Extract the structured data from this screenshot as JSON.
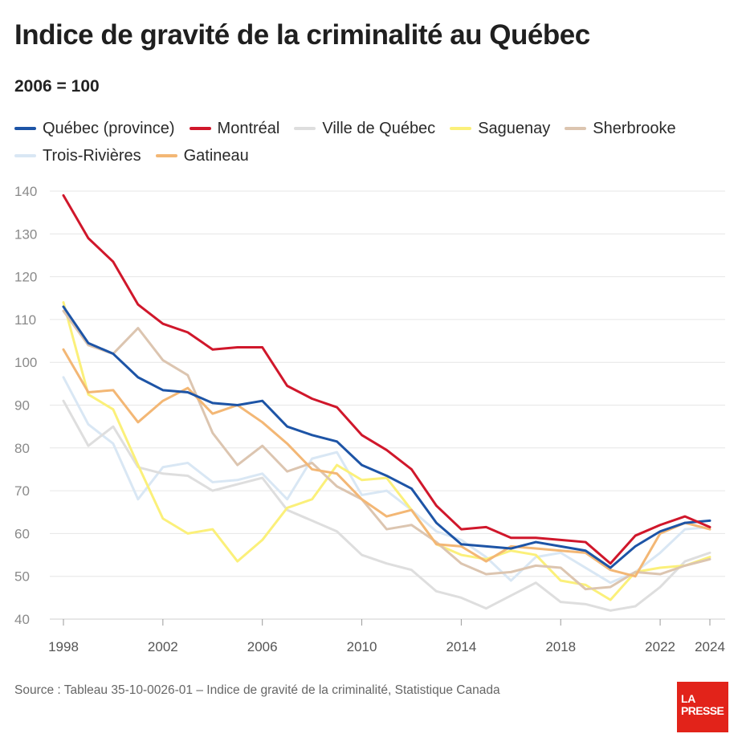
{
  "title": "Indice de gravité de la criminalité au Québec",
  "subtitle": "2006 = 100",
  "source": "Source : Tableau 35-10-0026-01 – Indice de gravité de la criminalité, Statistique Canada",
  "logo": {
    "line1": "LA",
    "line2": "PRESSE"
  },
  "chart_data": {
    "type": "line",
    "title": "Indice de gravité de la criminalité au Québec",
    "subtitle": "2006 = 100",
    "xlabel": "",
    "ylabel": "",
    "x": [
      1998,
      1999,
      2000,
      2001,
      2002,
      2003,
      2004,
      2005,
      2006,
      2007,
      2008,
      2009,
      2010,
      2011,
      2012,
      2013,
      2014,
      2015,
      2016,
      2017,
      2018,
      2019,
      2020,
      2021,
      2022,
      2023,
      2024
    ],
    "xticks": [
      1998,
      2002,
      2006,
      2010,
      2014,
      2018,
      2022,
      2024
    ],
    "yticks": [
      40,
      50,
      60,
      70,
      80,
      90,
      100,
      110,
      120,
      130,
      140
    ],
    "ylim": [
      40,
      140
    ],
    "xlim": [
      1998,
      2024
    ],
    "grid": true,
    "legend": "top",
    "series": [
      {
        "name": "Trois-Rivières",
        "color": "#d9e7f4",
        "values": [
          96.5,
          85.5,
          81,
          68,
          75.5,
          76.5,
          72,
          72.5,
          74,
          68,
          77.5,
          79,
          69,
          70,
          65.5,
          60.5,
          58.5,
          54.5,
          49,
          54.5,
          55.5,
          52,
          48.5,
          51,
          55.5,
          61,
          61.5
        ]
      },
      {
        "name": "Ville de Québec",
        "color": "#dedede",
        "values": [
          91,
          80.5,
          85,
          75.5,
          74,
          73.5,
          70,
          71.5,
          73,
          65.5,
          63,
          60.5,
          55,
          53,
          51.5,
          46.5,
          45,
          42.5,
          45.5,
          48.5,
          44,
          43.5,
          42,
          43,
          47.5,
          53.5,
          55.5
        ]
      },
      {
        "name": "Saguenay",
        "color": "#fbf07a",
        "values": [
          114,
          92.5,
          89,
          76,
          63.5,
          60,
          61,
          53.5,
          58.5,
          66,
          68,
          76,
          72.5,
          73,
          65.5,
          57.5,
          55,
          54,
          56,
          55,
          49,
          48,
          44.5,
          51,
          52,
          52.5,
          54.5
        ]
      },
      {
        "name": "Sherbrooke",
        "color": "#dcc5b0",
        "values": [
          112,
          104,
          102,
          108,
          100.5,
          97,
          83.5,
          76,
          80.5,
          74.5,
          76.5,
          71,
          68,
          61,
          62,
          58,
          53,
          50.5,
          51,
          52.5,
          52,
          47,
          47.5,
          51,
          50.5,
          52.5,
          54
        ]
      },
      {
        "name": "Gatineau",
        "color": "#f3b775",
        "values": [
          103,
          93,
          93.5,
          86,
          91,
          94,
          88,
          90,
          86,
          81,
          75,
          74,
          68,
          64,
          65.5,
          57.5,
          57,
          53.5,
          57,
          56.5,
          56,
          55.5,
          51.5,
          50,
          60,
          62.5,
          61
        ]
      },
      {
        "name": "Québec (province)",
        "color": "#1d54a6",
        "values": [
          113,
          104.5,
          102,
          96.5,
          93.5,
          93,
          90.5,
          90,
          91,
          85,
          83,
          81.5,
          76,
          73.5,
          70.5,
          62.5,
          57.5,
          57,
          56.5,
          58,
          57,
          56,
          52,
          57,
          60.5,
          62.5,
          63
        ]
      },
      {
        "name": "Montréal",
        "color": "#d0172b",
        "values": [
          139,
          129,
          123.5,
          113.5,
          109,
          107,
          103,
          103.5,
          103.5,
          94.5,
          91.5,
          89.5,
          83,
          79.5,
          75,
          66.5,
          61,
          61.5,
          59,
          59,
          58.5,
          58,
          53,
          59.5,
          62,
          64,
          61.5
        ]
      }
    ]
  },
  "legend": {
    "row1": [
      {
        "name": "Québec (province)",
        "color": "#1d54a6"
      },
      {
        "name": "Montréal",
        "color": "#d0172b"
      },
      {
        "name": "Ville de Québec",
        "color": "#dedede"
      },
      {
        "name": "Saguenay",
        "color": "#fbf07a"
      },
      {
        "name": "Sherbrooke",
        "color": "#dcc5b0"
      }
    ],
    "row2": [
      {
        "name": "Trois-Rivières",
        "color": "#d9e7f4"
      },
      {
        "name": "Gatineau",
        "color": "#f3b775"
      }
    ]
  }
}
